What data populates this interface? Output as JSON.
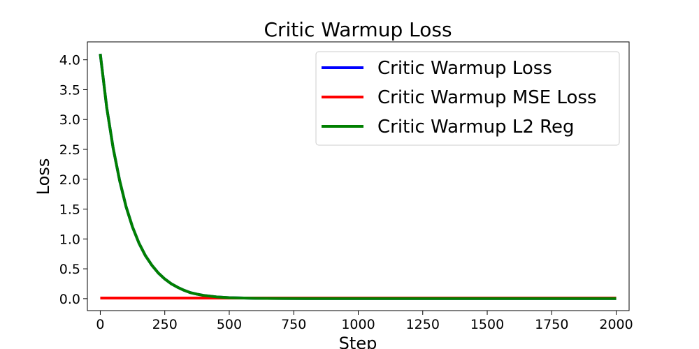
{
  "chart_data": {
    "type": "line",
    "title": "Critic Warmup Loss",
    "xlabel": "Step",
    "ylabel": "Loss",
    "xlim": [
      -50,
      2050
    ],
    "ylim": [
      -0.2,
      4.3
    ],
    "xticks": [
      0,
      250,
      500,
      750,
      1000,
      1250,
      1500,
      1750,
      2000
    ],
    "yticks": [
      0.0,
      0.5,
      1.0,
      1.5,
      2.0,
      2.5,
      3.0,
      3.5,
      4.0
    ],
    "xtick_labels": [
      "0",
      "250",
      "500",
      "750",
      "1000",
      "1250",
      "1500",
      "1750",
      "2000"
    ],
    "ytick_labels": [
      "0.0",
      "0.5",
      "1.0",
      "1.5",
      "2.0",
      "2.5",
      "3.0",
      "3.5",
      "4.0"
    ],
    "grid": false,
    "legend_position": "top-right",
    "x": [
      0,
      25,
      50,
      75,
      100,
      125,
      150,
      175,
      200,
      225,
      250,
      275,
      300,
      325,
      350,
      375,
      400,
      450,
      500,
      600,
      700,
      800,
      1000,
      1250,
      1500,
      1750,
      2000
    ],
    "series": [
      {
        "name": "Critic Warmup Loss",
        "color": "#0000ff",
        "values": [
          4.1,
          3.2,
          2.52,
          1.98,
          1.54,
          1.2,
          0.93,
          0.72,
          0.56,
          0.43,
          0.33,
          0.25,
          0.19,
          0.14,
          0.1,
          0.075,
          0.055,
          0.03,
          0.016,
          0.006,
          0.003,
          0.002,
          0.001,
          0.001,
          0.001,
          0.001,
          0.001
        ]
      },
      {
        "name": "Critic Warmup MSE Loss",
        "color": "#ff0000",
        "values": [
          0.01,
          0.01,
          0.01,
          0.01,
          0.01,
          0.01,
          0.01,
          0.01,
          0.01,
          0.01,
          0.01,
          0.01,
          0.01,
          0.01,
          0.01,
          0.01,
          0.01,
          0.01,
          0.01,
          0.01,
          0.01,
          0.01,
          0.01,
          0.01,
          0.01,
          0.01,
          0.01
        ]
      },
      {
        "name": "Critic Warmup L2 Reg",
        "color": "#008000",
        "values": [
          4.1,
          3.2,
          2.52,
          1.98,
          1.54,
          1.2,
          0.93,
          0.72,
          0.56,
          0.43,
          0.33,
          0.25,
          0.19,
          0.14,
          0.1,
          0.075,
          0.055,
          0.03,
          0.016,
          0.006,
          0.003,
          0.002,
          0.001,
          0.001,
          0.001,
          0.001,
          0.001
        ]
      }
    ]
  }
}
